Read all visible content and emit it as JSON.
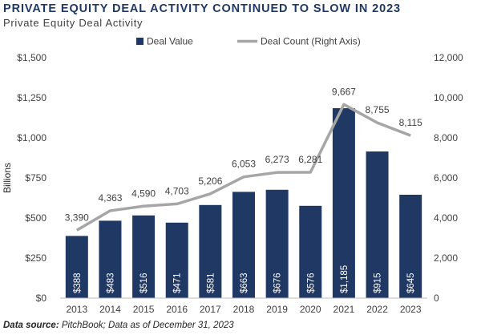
{
  "header": {
    "title": "PRIVATE EQUITY DEAL ACTIVITY CONTINUED TO SLOW IN 2023",
    "subtitle": "Private Equity Deal Activity"
  },
  "footer": {
    "source_label": "Data source:",
    "source_text": " PitchBook; Data as of December 31, 2023"
  },
  "colors": {
    "bar": "#203864",
    "line": "#a6a6a6",
    "title": "#1f3864",
    "axis_text": "#404040",
    "bar_label": "#ffffff"
  },
  "chart_data": {
    "type": "bar",
    "categories": [
      "2013",
      "2014",
      "2015",
      "2016",
      "2017",
      "2018",
      "2019",
      "2020",
      "2021",
      "2022",
      "2023"
    ],
    "series": [
      {
        "name": "Deal Value",
        "type": "bar",
        "axis": "left",
        "values": [
          388,
          483,
          516,
          471,
          581,
          663,
          676,
          576,
          1185,
          915,
          645
        ],
        "labels": [
          "$388",
          "$483",
          "$516",
          "$471",
          "$581",
          "$663",
          "$676",
          "$576",
          "$1,185",
          "$915",
          "$645"
        ]
      },
      {
        "name": "Deal Count (Right Axis)",
        "type": "line",
        "axis": "right",
        "values": [
          3390,
          4363,
          4590,
          4703,
          5206,
          6053,
          6273,
          6281,
          9667,
          8755,
          8115
        ],
        "labels": [
          "3,390",
          "4,363",
          "4,590",
          "4,703",
          "5,206",
          "6,053",
          "6,273",
          "6,281",
          "9,667",
          "8,755",
          "8,115"
        ]
      }
    ],
    "ylabel": "Billions",
    "ylim": [
      0,
      1500
    ],
    "yticks": [
      0,
      250,
      500,
      750,
      1000,
      1250,
      1500
    ],
    "ytick_labels": [
      "$0",
      "$250",
      "$500",
      "$750",
      "$1,000",
      "$1,250",
      "$1,500"
    ],
    "y2lim": [
      0,
      12000
    ],
    "y2ticks": [
      0,
      2000,
      4000,
      6000,
      8000,
      10000,
      12000
    ],
    "y2tick_labels": [
      "0",
      "2,000",
      "4,000",
      "6,000",
      "8,000",
      "10,000",
      "12,000"
    ],
    "legend_position": "top-center",
    "grid": false
  }
}
